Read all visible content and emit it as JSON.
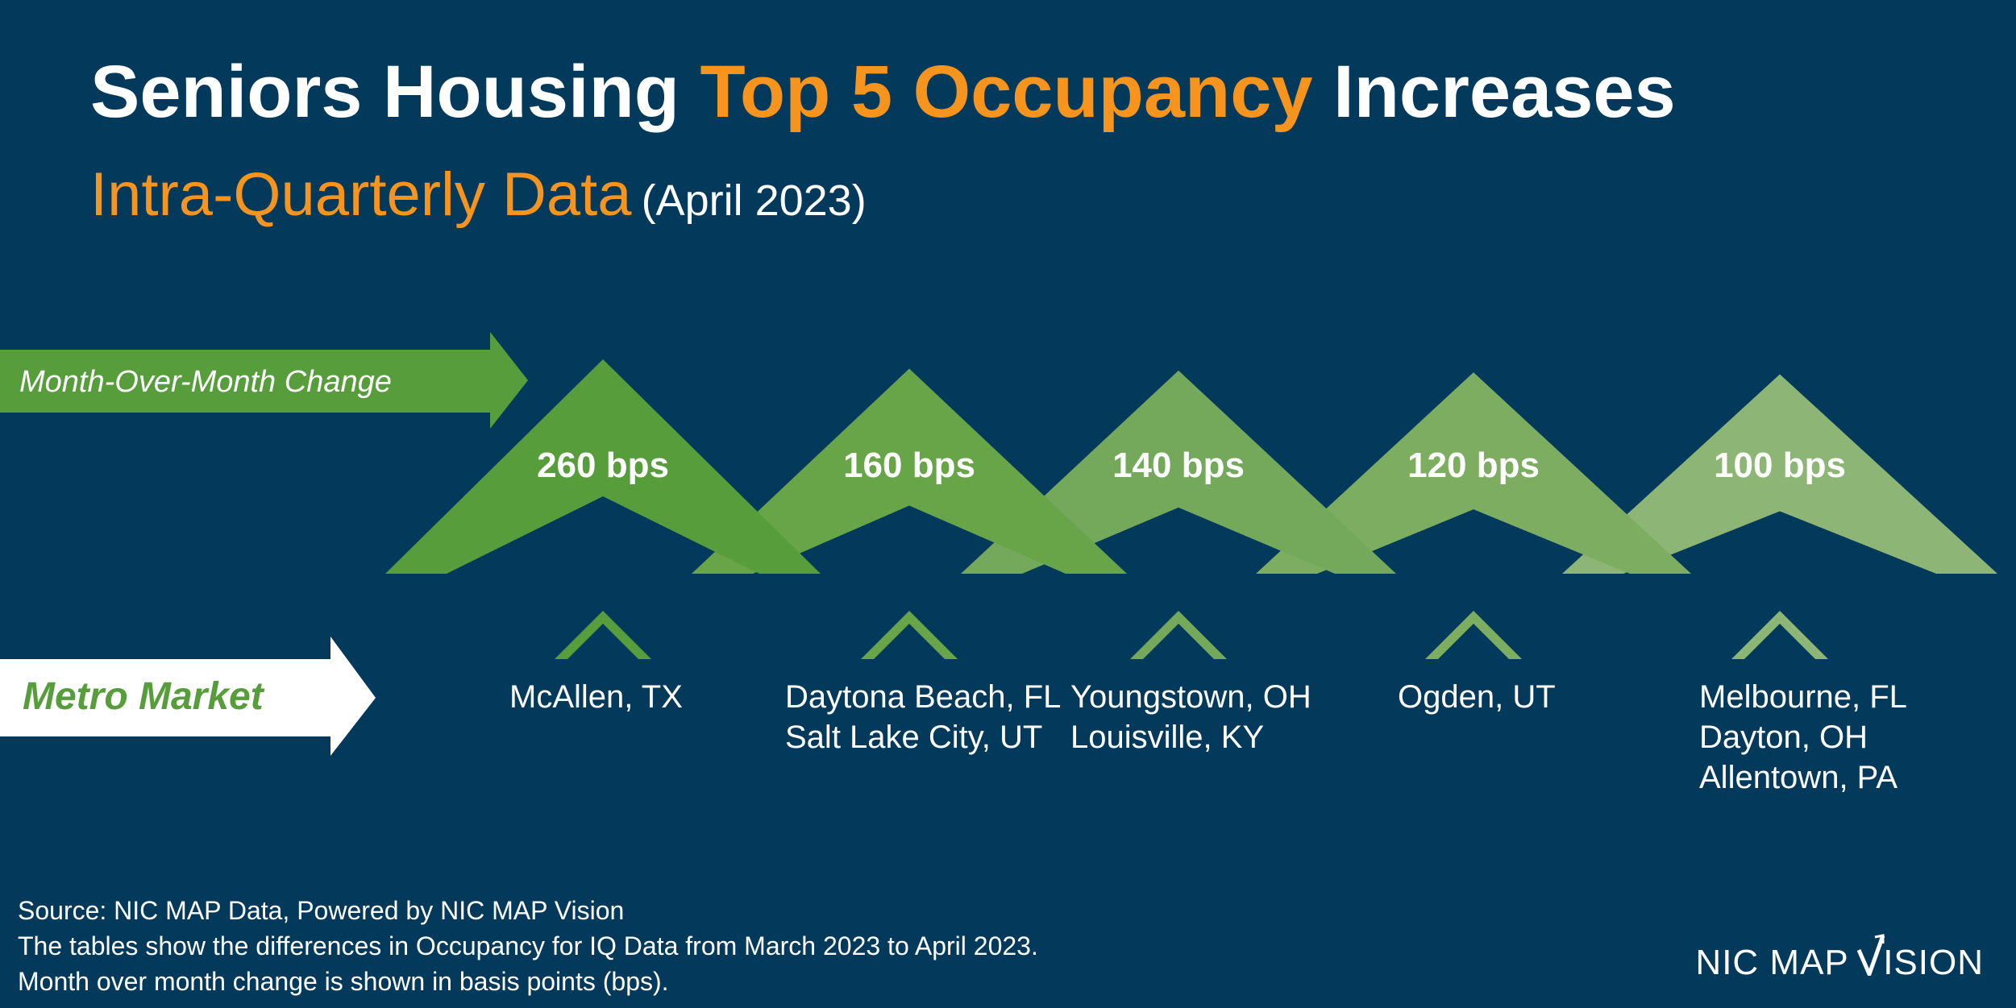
{
  "title": {
    "part1": "Seniors Housing",
    "part2": "Top 5 Occupancy",
    "part3": "Increases"
  },
  "subtitle": {
    "main": "Intra-Quarterly Data",
    "date": "(April 2023)"
  },
  "arrows": {
    "mom_label": "Month-Over-Month Change",
    "metro_label": "Metro Market"
  },
  "colors": {
    "background": "#033a5c",
    "accent_orange": "#f7941d",
    "green_1": "#579d3c",
    "green_2": "#67a548",
    "green_3": "#74a85b",
    "green_4": "#7dad60",
    "green_5": "#8db576",
    "white": "#ffffff"
  },
  "chart_data": {
    "type": "bar",
    "title": "Seniors Housing Top 5 Occupancy Increases",
    "metric": "Month-Over-Month Change",
    "unit": "bps",
    "categories": [
      "McAllen, TX",
      "Daytona Beach, FL / Salt Lake City, UT",
      "Youngstown, OH / Louisville, KY",
      "Ogden, UT",
      "Melbourne, FL / Dayton, OH / Allentown, PA"
    ],
    "values": [
      260,
      160,
      140,
      120,
      100
    ],
    "labels": [
      "260 bps",
      "160 bps",
      "140 bps",
      "120 bps",
      "100 bps"
    ],
    "metros": [
      [
        "McAllen, TX"
      ],
      [
        "Daytona Beach, FL",
        "Salt Lake City, UT"
      ],
      [
        "Youngstown, OH",
        "Louisville, KY"
      ],
      [
        "Ogden, UT"
      ],
      [
        "Melbourne, FL",
        "Dayton, OH",
        "Allentown, PA"
      ]
    ]
  },
  "footer": {
    "line1": "Source: NIC MAP Data, Powered by NIC MAP Vision",
    "line2": "The tables show the differences in Occupancy for IQ Data from March 2023 to April 2023.",
    "line3": "Month over month change is shown in basis points (bps)."
  },
  "logo": {
    "text_left": "NIC MAP ",
    "text_right": "ISION"
  }
}
